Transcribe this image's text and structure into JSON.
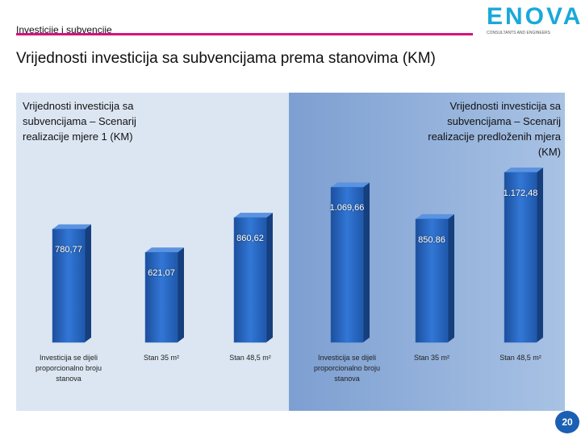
{
  "slide": {
    "section": "Investicije i subvencije",
    "title": "Vrijednosti investicija sa subvencijama prema stanovima (KM)",
    "logo": "ENOVA",
    "logo_tagline": "CONSULTANTS AND ENGINEERS",
    "page": "20"
  },
  "chart_data": [
    {
      "type": "bar",
      "title": "Vrijednosti investicija sa subvencijama – Scenarij realizacije mjere 1 (KM)",
      "categories": [
        "Investicija se dijeli proporcionalno broju stanova",
        "Stan 35 m²",
        "Stan 48,5 m²"
      ],
      "values": [
        780.77,
        621.07,
        860.62
      ],
      "value_labels": [
        "780,77",
        "621,07",
        "860,62"
      ],
      "color": "#2a68c2"
    },
    {
      "type": "bar",
      "title": "Vrijednosti investicija sa subvencijama – Scenarij realizacije predloženih mjera (KM)",
      "categories": [
        "Investicija se dijeli proporcionalno broju stanova",
        "Stan 35 m²",
        "Stan 48,5 m²"
      ],
      "values": [
        1069.66,
        850.86,
        1172.48
      ],
      "value_labels": [
        "1.069,66",
        "850.86",
        "1.172,48"
      ],
      "color": "#2a68c2"
    }
  ]
}
